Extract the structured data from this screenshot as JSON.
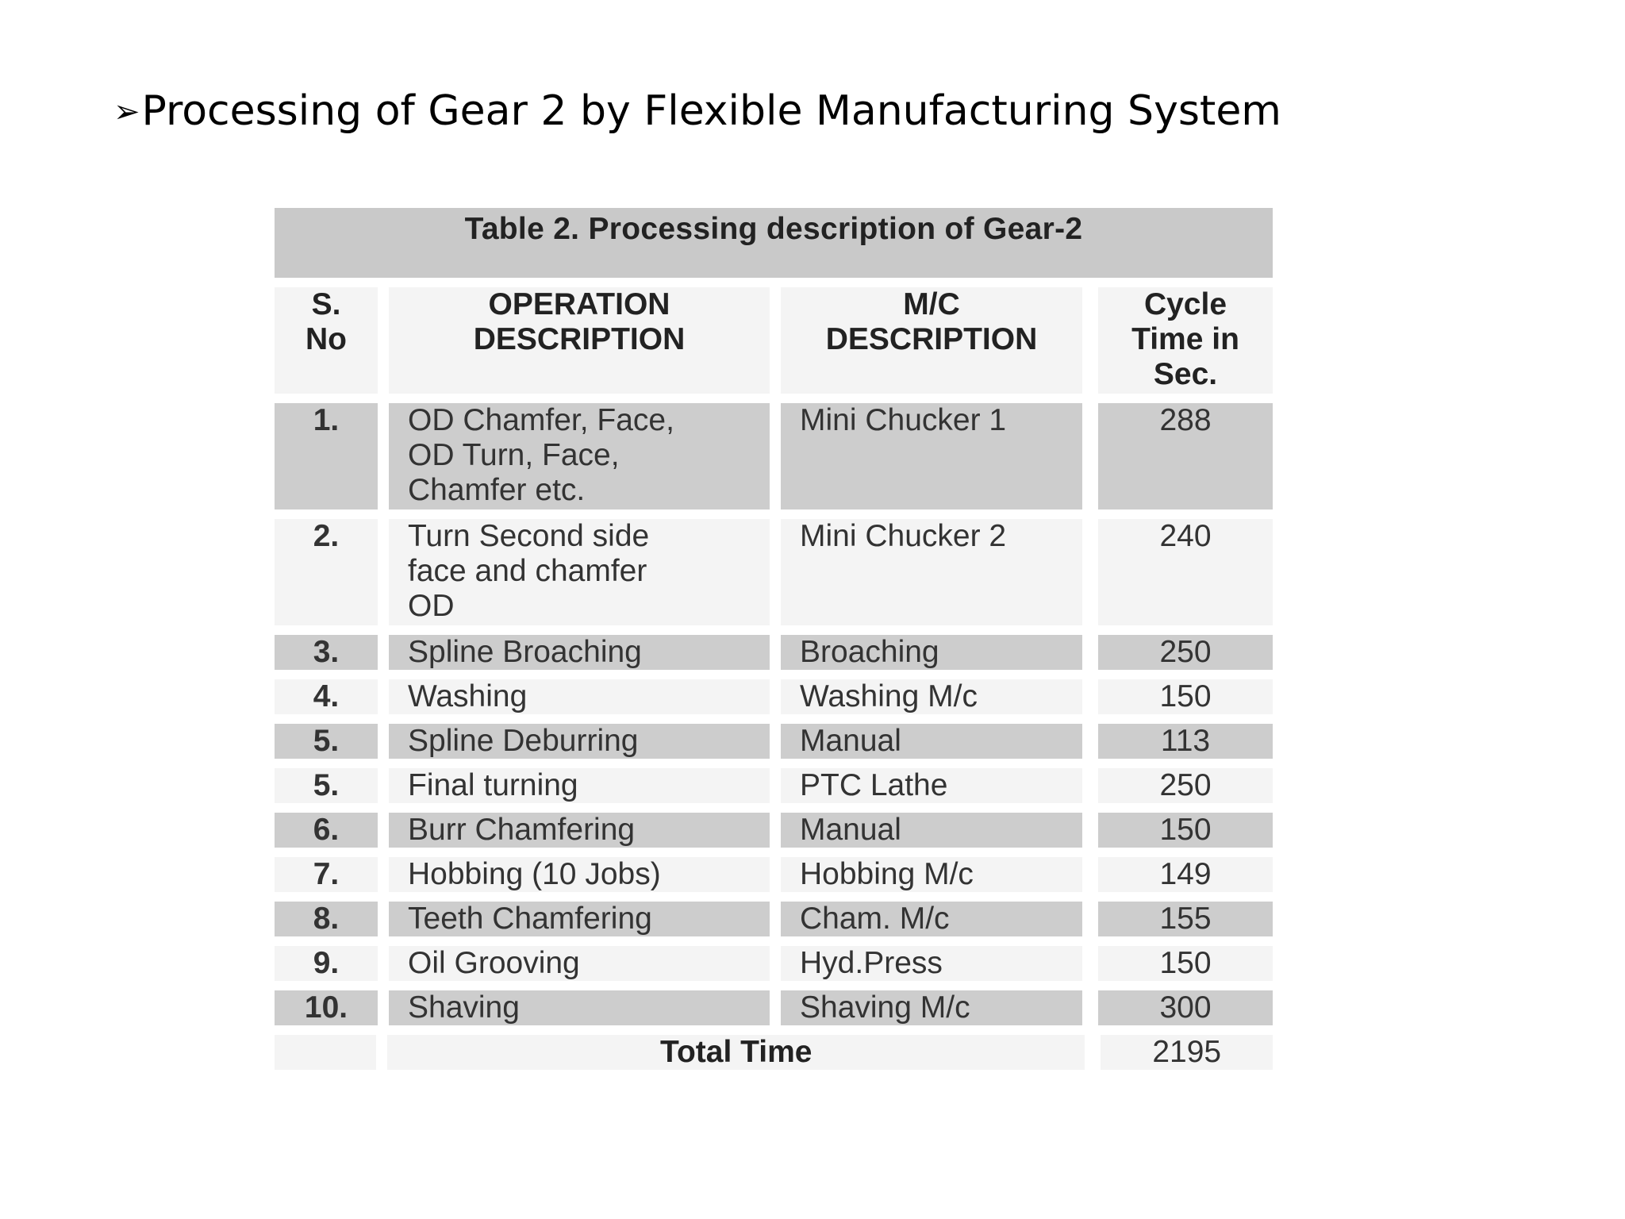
{
  "slide": {
    "bullet": "➢",
    "title": "Processing of Gear 2 by Flexible Manufacturing System"
  },
  "table": {
    "caption": "Table 2. Processing description of Gear-2",
    "headers": {
      "sno": "S.\nNo",
      "operation": "OPERATION\nDESCRIPTION",
      "machine": "M/C\nDESCRIPTION",
      "cycle": "Cycle\nTime in\nSec."
    },
    "rows": [
      {
        "sno": "1.",
        "operation": "OD Chamfer, Face,\nOD Turn, Face,\nChamfer etc.",
        "machine": "Mini Chucker 1",
        "cycle": "288"
      },
      {
        "sno": "2.",
        "operation": "Turn Second side\nface and chamfer\nOD",
        "machine": "Mini Chucker 2",
        "cycle": "240"
      },
      {
        "sno": "3.",
        "operation": "Spline Broaching",
        "machine": "Broaching",
        "cycle": "250"
      },
      {
        "sno": "4.",
        "operation": "Washing",
        "machine": "Washing M/c",
        "cycle": "150"
      },
      {
        "sno": "5.",
        "operation": "Spline Deburring",
        "machine": "Manual",
        "cycle": "113"
      },
      {
        "sno": "5.",
        "operation": "Final turning",
        "machine": "PTC  Lathe",
        "cycle": "250"
      },
      {
        "sno": "6.",
        "operation": "Burr Chamfering",
        "machine": "Manual",
        "cycle": "150"
      },
      {
        "sno": "7.",
        "operation": "Hobbing (10 Jobs)",
        "machine": "Hobbing M/c",
        "cycle": "149"
      },
      {
        "sno": "8.",
        "operation": "Teeth Chamfering",
        "machine": "Cham. M/c",
        "cycle": "155"
      },
      {
        "sno": "9.",
        "operation": "Oil Grooving",
        "machine": "Hyd.Press",
        "cycle": "150"
      },
      {
        "sno": "10.",
        "operation": "Shaving",
        "machine": "Shaving M/c",
        "cycle": "300"
      }
    ],
    "total": {
      "label": "Total Time",
      "value": "2195"
    }
  }
}
